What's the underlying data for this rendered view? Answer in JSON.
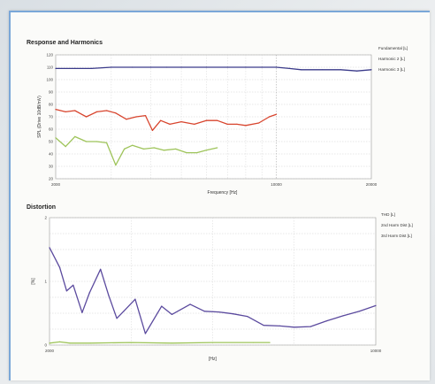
{
  "chart_data": [
    {
      "type": "line",
      "title": "Response and Harmonics",
      "xlabel": "Frequency [Hz]",
      "ylabel": "SPL (Drive 10dB/mV)",
      "xscale": "log",
      "xlim": [
        2000,
        20000
      ],
      "ylim": [
        20,
        120
      ],
      "xticks": [
        2000,
        10000,
        20000
      ],
      "yticks": [
        20,
        30,
        40,
        50,
        60,
        70,
        80,
        90,
        100,
        110,
        120
      ],
      "grid": true,
      "legend": "right",
      "series": [
        {
          "name": "Fundamental [L]",
          "color": "#3a3a8a",
          "x": [
            2000,
            2300,
            2600,
            3000,
            3500,
            4000,
            4500,
            5000,
            6000,
            7000,
            8000,
            9000,
            10000,
            11000,
            12000,
            14000,
            16000,
            18000,
            20000
          ],
          "y": [
            109,
            109,
            109,
            110,
            110,
            110,
            110,
            110,
            110,
            110,
            110,
            110,
            110,
            109,
            108,
            108,
            108,
            107,
            108
          ]
        },
        {
          "name": "Harmonic 2 [L]",
          "color": "#d8452e",
          "x": [
            2000,
            2150,
            2300,
            2500,
            2700,
            2900,
            3100,
            3350,
            3600,
            3850,
            4050,
            4300,
            4600,
            5000,
            5500,
            6000,
            6500,
            7000,
            7500,
            8000,
            8800,
            9500,
            10000
          ],
          "y": [
            76,
            74,
            75,
            70,
            74,
            75,
            73,
            68,
            70,
            71,
            59,
            67,
            64,
            66,
            64,
            67,
            67,
            64,
            64,
            63,
            65,
            70,
            72
          ]
        },
        {
          "name": "Harmonic 3 [L]",
          "color": "#9ec45a",
          "x": [
            2000,
            2150,
            2300,
            2500,
            2700,
            2900,
            3100,
            3300,
            3500,
            3800,
            4100,
            4400,
            4800,
            5200,
            5600,
            6000,
            6500
          ],
          "y": [
            53,
            46,
            54,
            50,
            50,
            49,
            31,
            44,
            47,
            44,
            45,
            43,
            44,
            41,
            41,
            43,
            45
          ]
        }
      ]
    },
    {
      "type": "line",
      "title": "Distortion",
      "xlabel": "[Hz]",
      "ylabel": "[%]",
      "xlim": [
        2000,
        10000
      ],
      "ylim": [
        0,
        2
      ],
      "xticks": [
        2000,
        10000
      ],
      "yticks": [
        0,
        1,
        2
      ],
      "grid": true,
      "legend": "right",
      "series": [
        {
          "name": "THD [L]",
          "color": "#5b4a9e",
          "x": [
            2000,
            2250,
            2420,
            2580,
            2800,
            2980,
            3250,
            3450,
            3650,
            3820,
            4100,
            4350,
            4750,
            5000,
            5450,
            5800,
            6150,
            6500,
            6850,
            7250,
            7650,
            8000,
            8400,
            8800,
            9200,
            9600,
            10000
          ],
          "y": [
            1.53,
            1.22,
            0.85,
            0.94,
            0.51,
            0.82,
            1.19,
            0.78,
            0.42,
            0.53,
            0.72,
            0.18,
            0.61,
            0.48,
            0.64,
            0.53,
            0.52,
            0.49,
            0.45,
            0.31,
            0.3,
            0.28,
            0.29,
            0.38,
            0.46,
            0.53,
            0.62
          ]
        },
        {
          "name": "2nd Harm Dist [L]",
          "color": "#9ec45a",
          "x": [
            2000,
            2250,
            2500,
            3000,
            4000,
            5000,
            6000,
            7000,
            7400
          ],
          "y": [
            0.03,
            0.05,
            0.03,
            0.03,
            0.04,
            0.03,
            0.04,
            0.04,
            0.04
          ]
        },
        {
          "name": "3rd Harm Dist [L]",
          "color": "#7cb0d8",
          "x": [],
          "y": []
        }
      ]
    }
  ]
}
